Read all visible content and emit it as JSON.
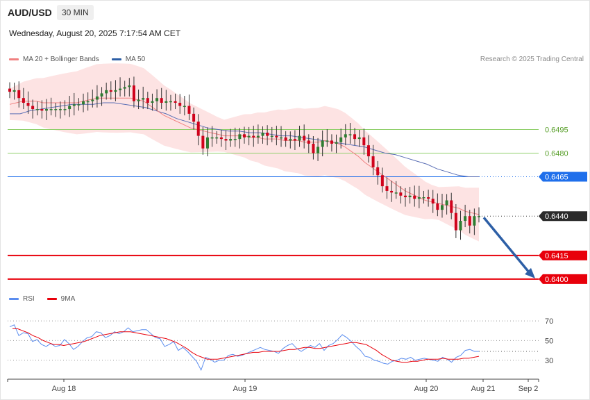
{
  "header": {
    "symbol": "AUD/USD",
    "timeframe": "30 MIN",
    "datetime": "Wednesday, August 20, 2025 7:17:54 AM CET"
  },
  "legend_main": {
    "ma20_label": "MA 20 + Bollinger Bands",
    "ma50_label": "MA 50"
  },
  "legend_rsi": {
    "rsi_label": "RSI",
    "ma_label": "9MA"
  },
  "credit": "Research © 2025 Trading Central",
  "colors": {
    "up": "#2e7d32",
    "down": "#d0021b",
    "ma20": "#f08080",
    "bands": "#fde3e3",
    "ma50": "#5b6fb5",
    "support": "#e8000b",
    "resistance": "#8fcf6a",
    "pivot": "#1f6feb",
    "arrow": "#2d5fa6",
    "rsi": "#5b8def",
    "rsi_ma": "#e8000b"
  },
  "chart_data": [
    {
      "type": "candlestick",
      "title": "AUD/USD 30 MIN",
      "ylim": [
        0.6392,
        0.6542
      ],
      "last_price": 0.644,
      "x_ticks": [
        "Aug 18",
        "Aug 19",
        "Aug 20",
        "Aug 21",
        "Sep 2"
      ],
      "levels": [
        {
          "label": "0.6495",
          "value": 0.6495,
          "kind": "resistance"
        },
        {
          "label": "0.6480",
          "value": 0.648,
          "kind": "resistance"
        },
        {
          "label": "0.6465",
          "value": 0.6465,
          "kind": "pivot"
        },
        {
          "label": "0.6440",
          "value": 0.644,
          "kind": "last"
        },
        {
          "label": "0.6415",
          "value": 0.6415,
          "kind": "support"
        },
        {
          "label": "0.6400",
          "value": 0.64,
          "kind": "support"
        }
      ],
      "forecast_arrow": {
        "from": 0.644,
        "to": 0.64
      },
      "close": [
        0.6519,
        0.652,
        0.6515,
        0.6512,
        0.651,
        0.6508,
        0.6508,
        0.6507,
        0.6508,
        0.6508,
        0.6508,
        0.6508,
        0.6508,
        0.651,
        0.6511,
        0.6511,
        0.6513,
        0.6513,
        0.6514,
        0.6516,
        0.6518,
        0.652,
        0.6519,
        0.652,
        0.6521,
        0.6522,
        0.6523,
        0.6513,
        0.6514,
        0.6515,
        0.6512,
        0.6513,
        0.6515,
        0.6512,
        0.6513,
        0.6513,
        0.6512,
        0.651,
        0.651,
        0.6505,
        0.65,
        0.6491,
        0.6483,
        0.649,
        0.649,
        0.649,
        0.6489,
        0.6488,
        0.6489,
        0.6489,
        0.6492,
        0.649,
        0.6491,
        0.649,
        0.6491,
        0.6493,
        0.6491,
        0.6491,
        0.649,
        0.649,
        0.6488,
        0.6489,
        0.6488,
        0.6491,
        0.6488,
        0.6486,
        0.648,
        0.6484,
        0.6488,
        0.6488,
        0.6486,
        0.6487,
        0.649,
        0.6492,
        0.6492,
        0.6489,
        0.649,
        0.6485,
        0.6478,
        0.6471,
        0.6466,
        0.6459,
        0.6456,
        0.6455,
        0.6455,
        0.6453,
        0.6452,
        0.6453,
        0.6451,
        0.6452,
        0.6452,
        0.6451,
        0.6448,
        0.6444,
        0.6447,
        0.645,
        0.6442,
        0.6431,
        0.6437,
        0.644,
        0.6434,
        0.644,
        0.644
      ],
      "series": [
        {
          "name": "MA 20",
          "values": [
            0.6511,
            0.6512,
            0.6513,
            0.6513,
            0.6513,
            0.6512,
            0.6512,
            0.6512,
            0.6512,
            0.6512,
            0.6512,
            0.6513,
            0.6514,
            0.6515,
            0.6515,
            0.6515,
            0.6515,
            0.6515,
            0.6515,
            0.6514,
            0.6513,
            0.651,
            0.6507,
            0.6504,
            0.6502,
            0.65,
            0.6498,
            0.6496,
            0.6495,
            0.6494,
            0.6493,
            0.6492,
            0.6491,
            0.6491,
            0.6491,
            0.6491,
            0.649,
            0.649,
            0.6489,
            0.6489,
            0.6489,
            0.6488,
            0.6488,
            0.6488,
            0.6487,
            0.6487,
            0.6487,
            0.6488,
            0.6487,
            0.6486,
            0.6484,
            0.6481,
            0.6478,
            0.6474,
            0.6471,
            0.6468,
            0.6465,
            0.6462,
            0.6459,
            0.6456,
            0.6454,
            0.6452,
            0.645,
            0.6449,
            0.6448,
            0.6447,
            0.6446,
            0.6445,
            0.6443,
            0.6442,
            0.6441
          ]
        },
        {
          "name": "MA 50",
          "values": [
            0.6505,
            0.6505,
            0.6507,
            0.6508,
            0.6509,
            0.651,
            0.6511,
            0.6511,
            0.6511,
            0.6512,
            0.6512,
            0.6511,
            0.651,
            0.6509,
            0.6507,
            0.6505,
            0.6502,
            0.65,
            0.6498,
            0.6496,
            0.6495,
            0.6494,
            0.6494,
            0.6493,
            0.6493,
            0.6492,
            0.6491,
            0.6491,
            0.649,
            0.6489,
            0.6488,
            0.6487,
            0.6486,
            0.6485,
            0.6484,
            0.6482,
            0.648,
            0.6479,
            0.6477,
            0.6475,
            0.6473,
            0.647,
            0.6468,
            0.6466,
            0.6465,
            0.6465
          ]
        }
      ]
    },
    {
      "type": "line",
      "title": "RSI",
      "ylim": [
        15,
        75
      ],
      "y_ticks": [
        70,
        50,
        30
      ],
      "series": [
        {
          "name": "RSI",
          "values": [
            64,
            66,
            55,
            58,
            57,
            49,
            51,
            46,
            44,
            47,
            44,
            45,
            51,
            47,
            41,
            44,
            49,
            53,
            54,
            59,
            58,
            53,
            55,
            59,
            57,
            59,
            63,
            59,
            60,
            61,
            61,
            57,
            53,
            52,
            44,
            46,
            49,
            40,
            43,
            39,
            34,
            29,
            20,
            33,
            31,
            28,
            30,
            30,
            35,
            36,
            34,
            35,
            37,
            39,
            41,
            43,
            41,
            40,
            39,
            37,
            42,
            45,
            47,
            42,
            39,
            42,
            45,
            43,
            47,
            40,
            45,
            47,
            51,
            56,
            53,
            49,
            44,
            40,
            34,
            33,
            30,
            29,
            27,
            26,
            29,
            30,
            32,
            31,
            33,
            30,
            31,
            32,
            31,
            30,
            29,
            33,
            31,
            28,
            33,
            35,
            40,
            41,
            39,
            39
          ]
        },
        {
          "name": "9MA",
          "values": [
            62,
            62,
            60,
            58,
            55,
            53,
            50,
            48,
            46,
            46,
            45,
            46,
            47,
            48,
            49,
            51,
            53,
            55,
            56,
            57,
            58,
            59,
            59,
            59,
            58,
            57,
            56,
            55,
            54,
            53,
            52,
            50,
            48,
            45,
            42,
            38,
            35,
            33,
            31,
            31,
            31,
            32,
            33,
            34,
            35,
            36,
            37,
            38,
            38,
            39,
            39,
            39,
            39,
            40,
            41,
            41,
            42,
            43,
            43,
            42,
            42,
            43,
            44,
            45,
            46,
            47,
            48,
            48,
            47,
            46,
            43,
            40,
            36,
            33,
            30,
            29,
            28,
            28,
            29,
            29,
            30,
            31,
            31,
            31,
            32,
            31,
            31,
            31,
            32,
            32,
            33,
            34
          ]
        }
      ]
    }
  ]
}
